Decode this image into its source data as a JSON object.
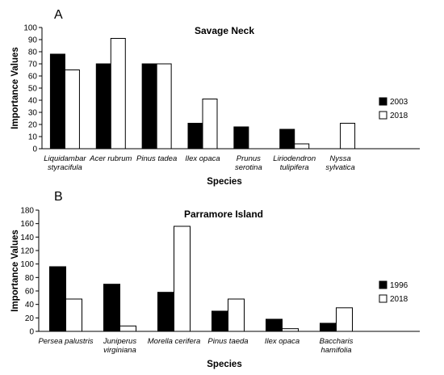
{
  "chart_data": [
    {
      "panel": "A",
      "type": "bar",
      "title": "Savage Neck",
      "xlabel": "Species",
      "ylabel": "Importance Values",
      "ylim": [
        0,
        100
      ],
      "yticks": [
        0,
        10,
        20,
        30,
        40,
        50,
        60,
        70,
        80,
        90,
        100
      ],
      "categories": [
        [
          "Liquidambar",
          "styracifula"
        ],
        [
          "Acer rubrum"
        ],
        [
          "Pinus tadea"
        ],
        [
          "Ilex opaca"
        ],
        [
          "Prunus",
          "serotina"
        ],
        [
          "Liriodendron",
          "tulipifera"
        ],
        [
          "Nyssa",
          "sylvatica"
        ]
      ],
      "series": [
        {
          "name": "2003",
          "color": "#000000",
          "values": [
            78,
            70,
            70,
            21,
            18,
            16,
            0
          ]
        },
        {
          "name": "2018",
          "color": "#ffffff",
          "values": [
            65,
            91,
            70,
            41,
            0,
            4,
            21
          ]
        }
      ],
      "grid": false,
      "legend_position": "right"
    },
    {
      "panel": "B",
      "type": "bar",
      "title": "Parramore Island",
      "xlabel": "Species",
      "ylabel": "Importance Values",
      "ylim": [
        0,
        180
      ],
      "yticks": [
        0,
        20,
        40,
        60,
        80,
        100,
        120,
        140,
        160,
        180
      ],
      "categories": [
        [
          "Persea palustris"
        ],
        [
          "Juniperus",
          "virginiana"
        ],
        [
          "Morella cerifera"
        ],
        [
          "Pinus taeda"
        ],
        [
          "Ilex opaca"
        ],
        [
          "Baccharis",
          "hamifolia"
        ]
      ],
      "series": [
        {
          "name": "1996",
          "color": "#000000",
          "values": [
            96,
            70,
            58,
            30,
            18,
            12
          ]
        },
        {
          "name": "2018",
          "color": "#ffffff",
          "values": [
            48,
            8,
            156,
            48,
            4,
            35
          ]
        }
      ],
      "grid": false,
      "legend_position": "right"
    }
  ]
}
